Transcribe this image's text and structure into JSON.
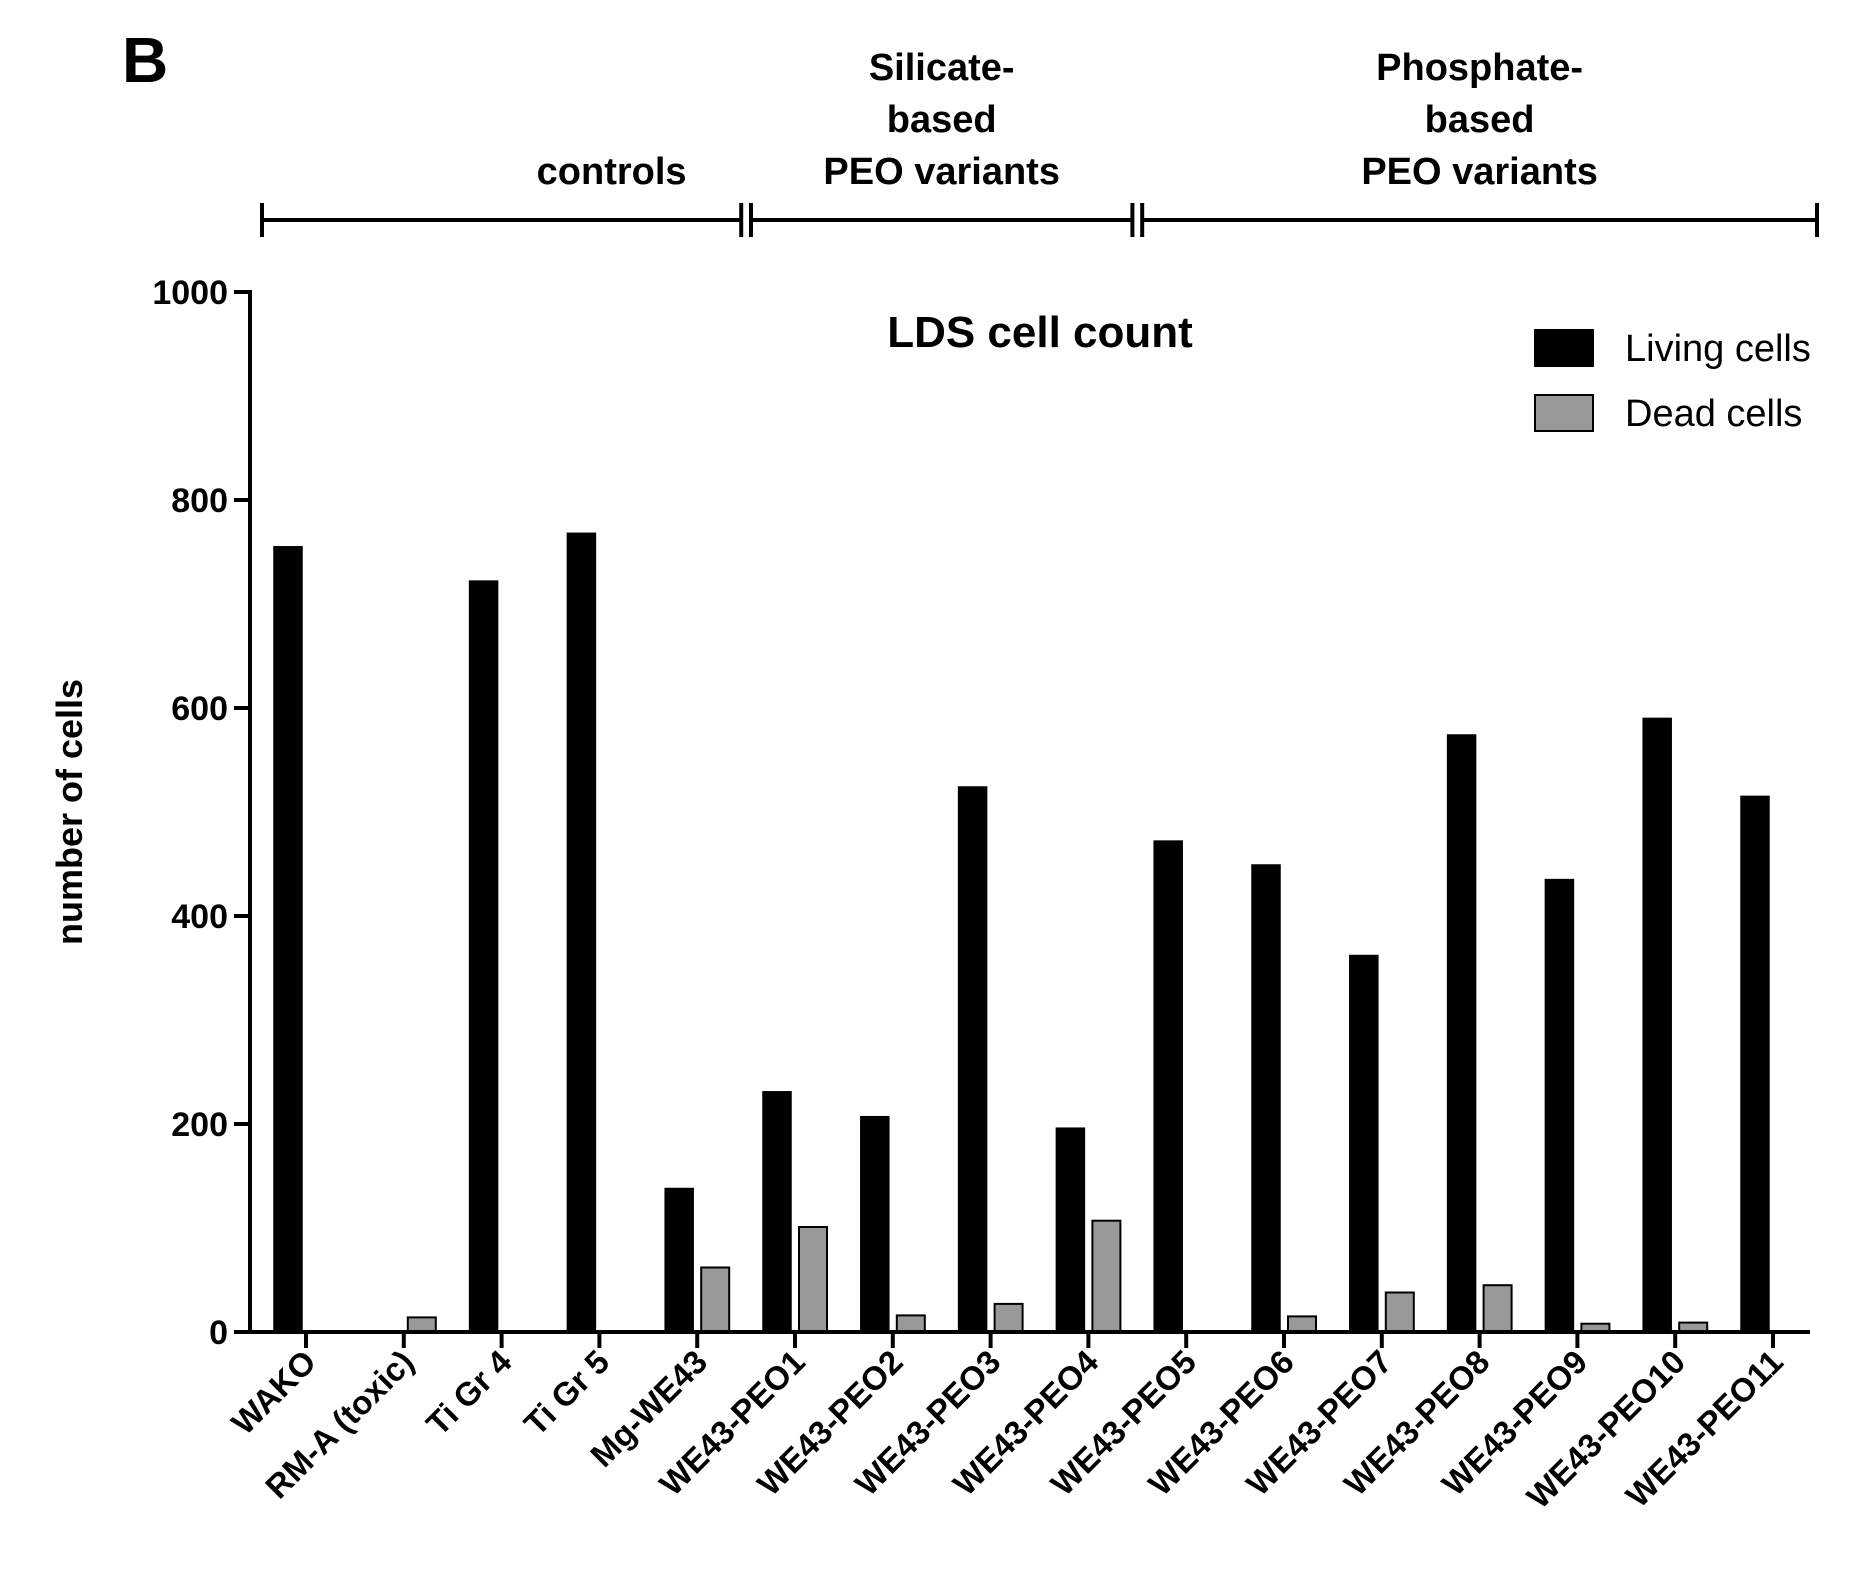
{
  "panel_letter": "B",
  "colors": {
    "living": "#000000",
    "dead": "#999999",
    "axis": "#000000"
  },
  "groups": [
    {
      "lines": [
        "controls"
      ],
      "first": 0,
      "last": 4
    },
    {
      "lines": [
        "Silicate-",
        "based",
        "PEO variants"
      ],
      "first": 5,
      "last": 8
    },
    {
      "lines": [
        "Phosphate-",
        "based",
        "PEO variants"
      ],
      "first": 9,
      "last": 15
    }
  ],
  "chart_data": {
    "type": "bar",
    "title": "LDS cell count",
    "xlabel": "",
    "ylabel": "number of cells",
    "ylim": [
      0,
      1000
    ],
    "yticks": [
      0,
      200,
      400,
      600,
      800,
      1000
    ],
    "legend_position": "top-right",
    "categories": [
      "WAKO",
      "RM-A (toxic)",
      "Ti Gr 4",
      "Ti Gr 5",
      "Mg-WE43",
      "WE43-PEO1",
      "WE43-PEO2",
      "WE43-PEO3",
      "WE43-PEO4",
      "WE43-PEO5",
      "WE43-PEO6",
      "WE43-PEO7",
      "WE43-PEO8",
      "WE43-PEO9",
      "WE43-PEO10",
      "WE43-PEO11"
    ],
    "series": [
      {
        "name": "Living cells",
        "values": [
          755,
          0,
          722,
          768,
          138,
          231,
          207,
          524,
          196,
          472,
          449,
          362,
          574,
          435,
          590,
          515
        ]
      },
      {
        "name": "Dead cells",
        "values": [
          0,
          14,
          0,
          0,
          62,
          101,
          16,
          27,
          107,
          0,
          15,
          38,
          45,
          8,
          9,
          0
        ]
      }
    ]
  }
}
